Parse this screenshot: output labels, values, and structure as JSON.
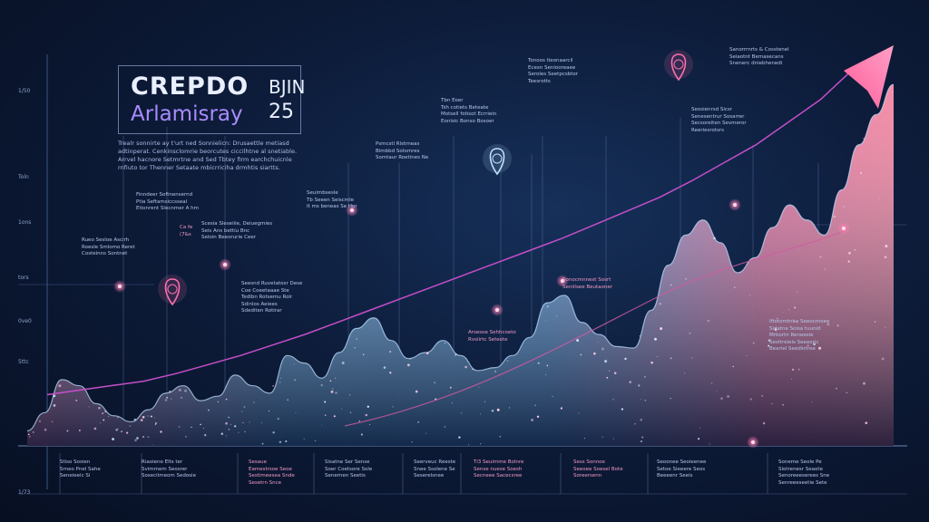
{
  "header": {
    "title": "CREPDO",
    "subtitle": "Arlamisray",
    "month": "BJIN",
    "year": "25",
    "intro": "Trealr sonnirte ay t'urt ned Sonnielicn: Drusaettle metiasd adtinperat. Cenkinsclomrie beorcutes ciccilhtne al snetiable. Arrvel hacnore Setmrtne and Sed Tbtey firm earchchuicnle rnfiuto tor Thenner Setaate mbicrriciha drmhtis siartts."
  },
  "axis_ticks": [
    "1/50",
    "Toln",
    "1ons",
    "tors",
    "0ve0",
    "5ttc",
    "1/73"
  ],
  "annotations": [
    {
      "lines": "Finndeer Softnensernd\nPtia Seftamsiccsseal\nEtionrent Slecnmer A hm"
    },
    {
      "lines": "Rueo Sesloe Ascirh\nRoesle Smlomo Reret\nCosteinns Sontnet"
    },
    {
      "lines": "Ca fe\n(7&s"
    },
    {
      "lines": "Scesia Sleseiiie, Deiuegmies\nSeis Ans bettiu Bnc\nSeloin Beeorurie Ceer"
    },
    {
      "lines": "Seuimbsesle\nTb Seeen Seiscmle\nIt ms beneas Se Hor"
    },
    {
      "lines": "Psmcstl Rlstrneas\nBimbbd Sotsmres\nSomtaur Roetines Ne"
    },
    {
      "lines": "Seesnd Ruvetatosr Dese\nCoe Coeetaaae Ste\nTedlbn Rotsemu Rolr\nSdinlos Aeiees\nSdediten Rotirar"
    },
    {
      "lines": "Tbn Eoer\nTsh cotiets Beteate\nMotsell fotisot Ecrriein\nEonisic Bonso Bosoer"
    },
    {
      "lines": "Tonoos tieonaarcil\nEcesn Seniooreaee\nSeroles Seetpcsbtor\nTeesrotts"
    },
    {
      "lines": "Sanorrrnrts & Cosstenel\nSeiaotnt Bemasecans\nSnenerc dniebhenedi"
    },
    {
      "lines": "Seosienrsd Sicsr\nSenesentrur Sosarrer\nSecsoreiten Sevmeror\nReeriesrotsrs"
    },
    {
      "lines": "Sonocmnnest Sosrt\nSeniilsee Beutaoner"
    },
    {
      "lines": "Iftotomtnaa Seeocrnoee\nSidatne Soisa tuunid\nMrbortn Reneesie\nSesttreieis Seeooric\nBeariel Seedsrtree"
    },
    {
      "lines": "Arsesoe Sehhcoeto\nRvsiirtc Seteote"
    }
  ],
  "bottom_notes": [
    {
      "lines": "Stiso Sosien\nSrneo Pnel Sahe\nSeneieeic Si"
    },
    {
      "lines": "Riaoiene Elts ter\nSvimmem Seosrer\nSoxeciimeom Sedosie"
    },
    {
      "lines": "Sesaue\nEamestrsoe Seoe\nSestimeesea Snde\nSesetrn Snce"
    },
    {
      "lines": "Sisatne Ser Sense\nSoer Coetsore Sole\nSenernen Seetis"
    },
    {
      "lines": "Seerveuc Reeste\nSnee Ssolene Se\nSeserelsnee"
    },
    {
      "lines": "Ti3 Seuimme Bolnre\nSense nuese Soesh\nSecneee Sacecsree"
    },
    {
      "lines": "Sess Sonnoe\nSeeoee Soesel Bote\nSoreersenn"
    },
    {
      "lines": "Seoonee Seoieenee\nSetoe Sieeere Seos\nBeeeenr Seeis"
    },
    {
      "lines": "Soneme Seole Pe\nSlotrenesr Seaote\nSenoreeeserees Sne\nSenreeeseetie Sete"
    }
  ],
  "colors": {
    "background": "#0a1630",
    "mountain_blue": "#4aa8ff",
    "mountain_pink": "#ff5d9a",
    "trend_line": "#c44fc8",
    "accent_text": "#a98cff"
  },
  "chart_data": {
    "type": "area",
    "title": "CREPDO",
    "subtitle": "Arlamisray",
    "x": [
      0,
      1,
      2,
      3,
      4,
      5,
      6,
      7,
      8,
      9,
      10,
      11,
      12,
      13,
      14,
      15,
      16,
      17,
      18,
      19,
      20,
      21,
      22,
      23,
      24,
      25,
      26,
      27,
      28,
      29,
      30,
      31,
      32,
      33,
      34,
      35,
      36,
      37,
      38,
      39,
      40,
      41,
      42,
      43,
      44,
      45,
      46,
      47,
      48,
      49,
      50
    ],
    "values": [
      10,
      22,
      44,
      40,
      28,
      20,
      16,
      24,
      35,
      40,
      30,
      33,
      47,
      40,
      35,
      60,
      55,
      45,
      62,
      78,
      85,
      70,
      58,
      62,
      70,
      60,
      50,
      52,
      60,
      72,
      95,
      100,
      82,
      74,
      66,
      65,
      90,
      120,
      140,
      150,
      135,
      115,
      125,
      145,
      160,
      150,
      140,
      170,
      200,
      220,
      240
    ],
    "trend_line": [
      34,
      37,
      40,
      43,
      48,
      54,
      60,
      67,
      74,
      82,
      90,
      98,
      106,
      114,
      122,
      130,
      138,
      147,
      156,
      165,
      176,
      188,
      200,
      215,
      230,
      250
    ],
    "ylim": [
      0,
      260
    ],
    "grid": false,
    "markers": [
      {
        "label": "pin-1",
        "x_index": 8
      },
      {
        "label": "pin-2",
        "x_index": 24
      },
      {
        "label": "pin-3",
        "x_index": 37
      }
    ]
  }
}
